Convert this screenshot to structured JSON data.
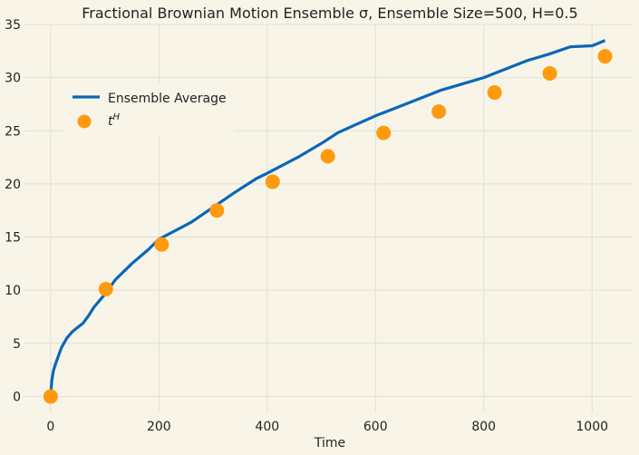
{
  "chart_data": {
    "type": "line",
    "title": "Fractional Brownian Motion Ensemble σ, Ensemble Size=500, H=0.5",
    "xlabel": "Time",
    "ylabel": "",
    "xlim": [
      -50,
      1075
    ],
    "ylim": [
      -1.5,
      35
    ],
    "xticks": [
      0,
      200,
      400,
      600,
      800,
      1000
    ],
    "yticks": [
      0,
      5,
      10,
      15,
      20,
      25,
      30,
      35
    ],
    "grid": true,
    "legend": "upper-left",
    "series": [
      {
        "name": "Ensemble Average",
        "kind": "line",
        "color": "#0a67b8",
        "x": [
          0,
          2,
          5,
          10,
          20,
          30,
          40,
          50,
          60,
          70,
          80,
          100,
          120,
          150,
          180,
          200,
          230,
          260,
          300,
          340,
          380,
          400,
          430,
          460,
          500,
          530,
          560,
          600,
          640,
          680,
          720,
          760,
          800,
          840,
          880,
          920,
          960,
          1000,
          1010,
          1024
        ],
        "y": [
          0.0,
          1.5,
          2.4,
          3.2,
          4.6,
          5.5,
          6.1,
          6.5,
          6.9,
          7.6,
          8.4,
          9.6,
          11.0,
          12.5,
          13.8,
          14.8,
          15.6,
          16.4,
          17.8,
          19.2,
          20.5,
          21.0,
          21.8,
          22.6,
          23.8,
          24.8,
          25.5,
          26.4,
          27.2,
          28.0,
          28.8,
          29.4,
          30.0,
          30.8,
          31.6,
          32.2,
          32.9,
          33.0,
          33.2,
          33.5
        ]
      },
      {
        "name": "t^H",
        "kind": "scatter",
        "color": "#ff9a0e",
        "x": [
          0,
          102,
          205,
          307,
          410,
          512,
          615,
          717,
          820,
          922,
          1024
        ],
        "y": [
          0.0,
          10.1,
          14.3,
          17.5,
          20.2,
          22.6,
          24.8,
          26.8,
          28.6,
          30.4,
          32.0
        ]
      }
    ]
  }
}
